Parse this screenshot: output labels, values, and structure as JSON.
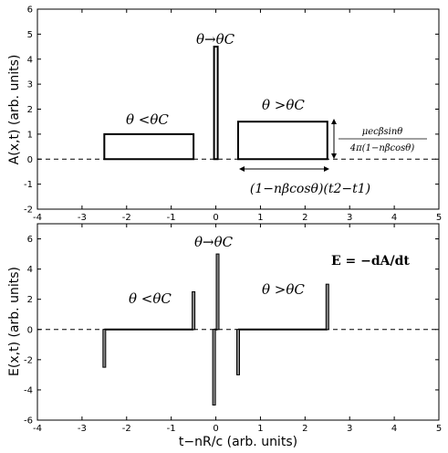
{
  "chart_data": [
    {
      "type": "step",
      "panel": "top",
      "ylabel": "A(x,t) (arb. units)",
      "xlim": [
        -4,
        5
      ],
      "ylim": [
        -2,
        6
      ],
      "xticks": [
        "-4",
        "-3",
        "-2",
        "-1",
        "0",
        "1",
        "2",
        "3",
        "4",
        "5"
      ],
      "yticks": [
        "-2",
        "-1",
        "0",
        "1",
        "2",
        "3",
        "4",
        "5",
        "6"
      ],
      "baseline": 0,
      "rectangles": [
        {
          "name": "θ<θC",
          "x": [
            -2.5,
            -0.5
          ],
          "height": 1.0
        },
        {
          "name": "θ→θC",
          "x": [
            -0.04,
            0.04
          ],
          "height": 4.5
        },
        {
          "name": "θ>θC",
          "x": [
            0.5,
            2.5
          ],
          "height": 1.5
        }
      ],
      "annotations": {
        "less": "θ <θC",
        "limit": "θ→θC",
        "greater": "θ >θC",
        "height_numerator": "μecβsinθ",
        "height_denominator": "4π(1−nβcosθ)",
        "width": "(1−nβcosθ)(t2−t1)"
      }
    },
    {
      "type": "impulse",
      "panel": "bottom",
      "xlabel": "t−nR/c (arb. units)",
      "ylabel": "E(x,t) (arb. units)",
      "xlim": [
        -4,
        5
      ],
      "ylim": [
        -6,
        7
      ],
      "xticks": [
        "-4",
        "-3",
        "-2",
        "-1",
        "0",
        "1",
        "2",
        "3",
        "4",
        "5"
      ],
      "yticks": [
        "-6",
        "-4",
        "-2",
        "0",
        "2",
        "4",
        "6"
      ],
      "baseline": 0,
      "spikes": [
        {
          "x": -2.5,
          "value": -2.5
        },
        {
          "x": -0.5,
          "value": 2.5
        },
        {
          "x": -0.04,
          "value": -5.0
        },
        {
          "x": 0.04,
          "value": 5.0
        },
        {
          "x": 0.5,
          "value": -3.0
        },
        {
          "x": 2.5,
          "value": 3.0
        }
      ],
      "annotations": {
        "less": "θ <θC",
        "limit": "θ→θC",
        "greater": "θ >θC",
        "equation": "E = −dA/dt"
      }
    }
  ]
}
